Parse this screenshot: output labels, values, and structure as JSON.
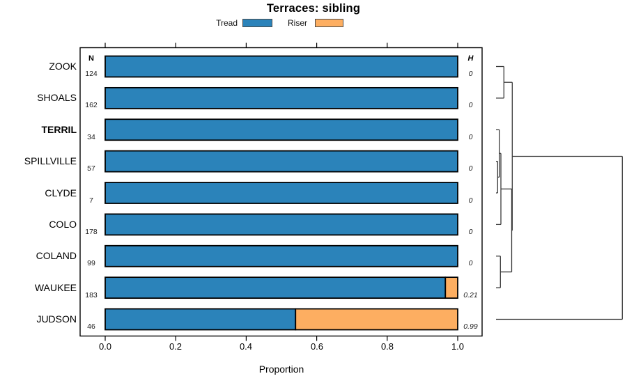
{
  "title": "Terraces: sibling",
  "legend": {
    "items": [
      {
        "label": "Tread",
        "color": "#2B83BA"
      },
      {
        "label": "Riser",
        "color": "#FDAE61"
      }
    ]
  },
  "table_headers": {
    "n": "N",
    "h": "H"
  },
  "axis": {
    "xlabel": "Proportion",
    "ticks": [
      "0.0",
      "0.2",
      "0.4",
      "0.6",
      "0.8",
      "1.0"
    ]
  },
  "chart_data": {
    "type": "bar",
    "orientation": "horizontal",
    "stacked": true,
    "title": "Terraces: sibling",
    "xlabel": "Proportion",
    "xlim": [
      0,
      1
    ],
    "x_ticks": [
      0,
      0.2,
      0.4,
      0.6,
      0.8,
      1.0
    ],
    "grid": false,
    "legend_position": "top",
    "categories": [
      "ZOOK",
      "SHOALS",
      "TERRIL",
      "SPILLVILLE",
      "CLYDE",
      "COLO",
      "COLAND",
      "WAUKEE",
      "JUDSON"
    ],
    "emphasized_category": "TERRIL",
    "series": [
      {
        "name": "Tread",
        "color": "#2B83BA",
        "values": [
          1.0,
          1.0,
          1.0,
          1.0,
          1.0,
          1.0,
          1.0,
          0.965,
          0.54
        ]
      },
      {
        "name": "Riser",
        "color": "#FDAE61",
        "values": [
          0.0,
          0.0,
          0.0,
          0.0,
          0.0,
          0.0,
          0.0,
          0.035,
          0.46
        ]
      }
    ],
    "n_values": [
      124,
      162,
      34,
      57,
      7,
      178,
      99,
      183,
      46
    ],
    "h_values": [
      "0",
      "0",
      "0",
      "0",
      "0",
      "0",
      "0",
      "0.21",
      "0.99"
    ],
    "dendrogram": {
      "height": 1.0,
      "children": [
        {
          "height": 0.1285,
          "children": [
            {
              "height": 0.0623,
              "children": [
                {
                  "leaf": "ZOOK"
                },
                {
                  "leaf": "SHOALS"
                }
              ]
            },
            {
              "height": 0.124,
              "children": [
                {
                  "height": 0.0386,
                  "children": [
                    {
                      "height": 0.0259,
                      "children": [
                        {
                          "leaf": "TERRIL"
                        },
                        {
                          "height": 0.0127,
                          "children": [
                            {
                              "leaf": "SPILLVILLE"
                            },
                            {
                              "leaf": "CLYDE"
                            }
                          ]
                        }
                      ]
                    },
                    {
                      "leaf": "COLO"
                    }
                  ]
                },
                {
                  "height": 0.0347,
                  "children": [
                    {
                      "leaf": "COLAND"
                    },
                    {
                      "leaf": "WAUKEE"
                    }
                  ]
                }
              ]
            }
          ]
        },
        {
          "leaf": "JUDSON"
        }
      ]
    }
  }
}
